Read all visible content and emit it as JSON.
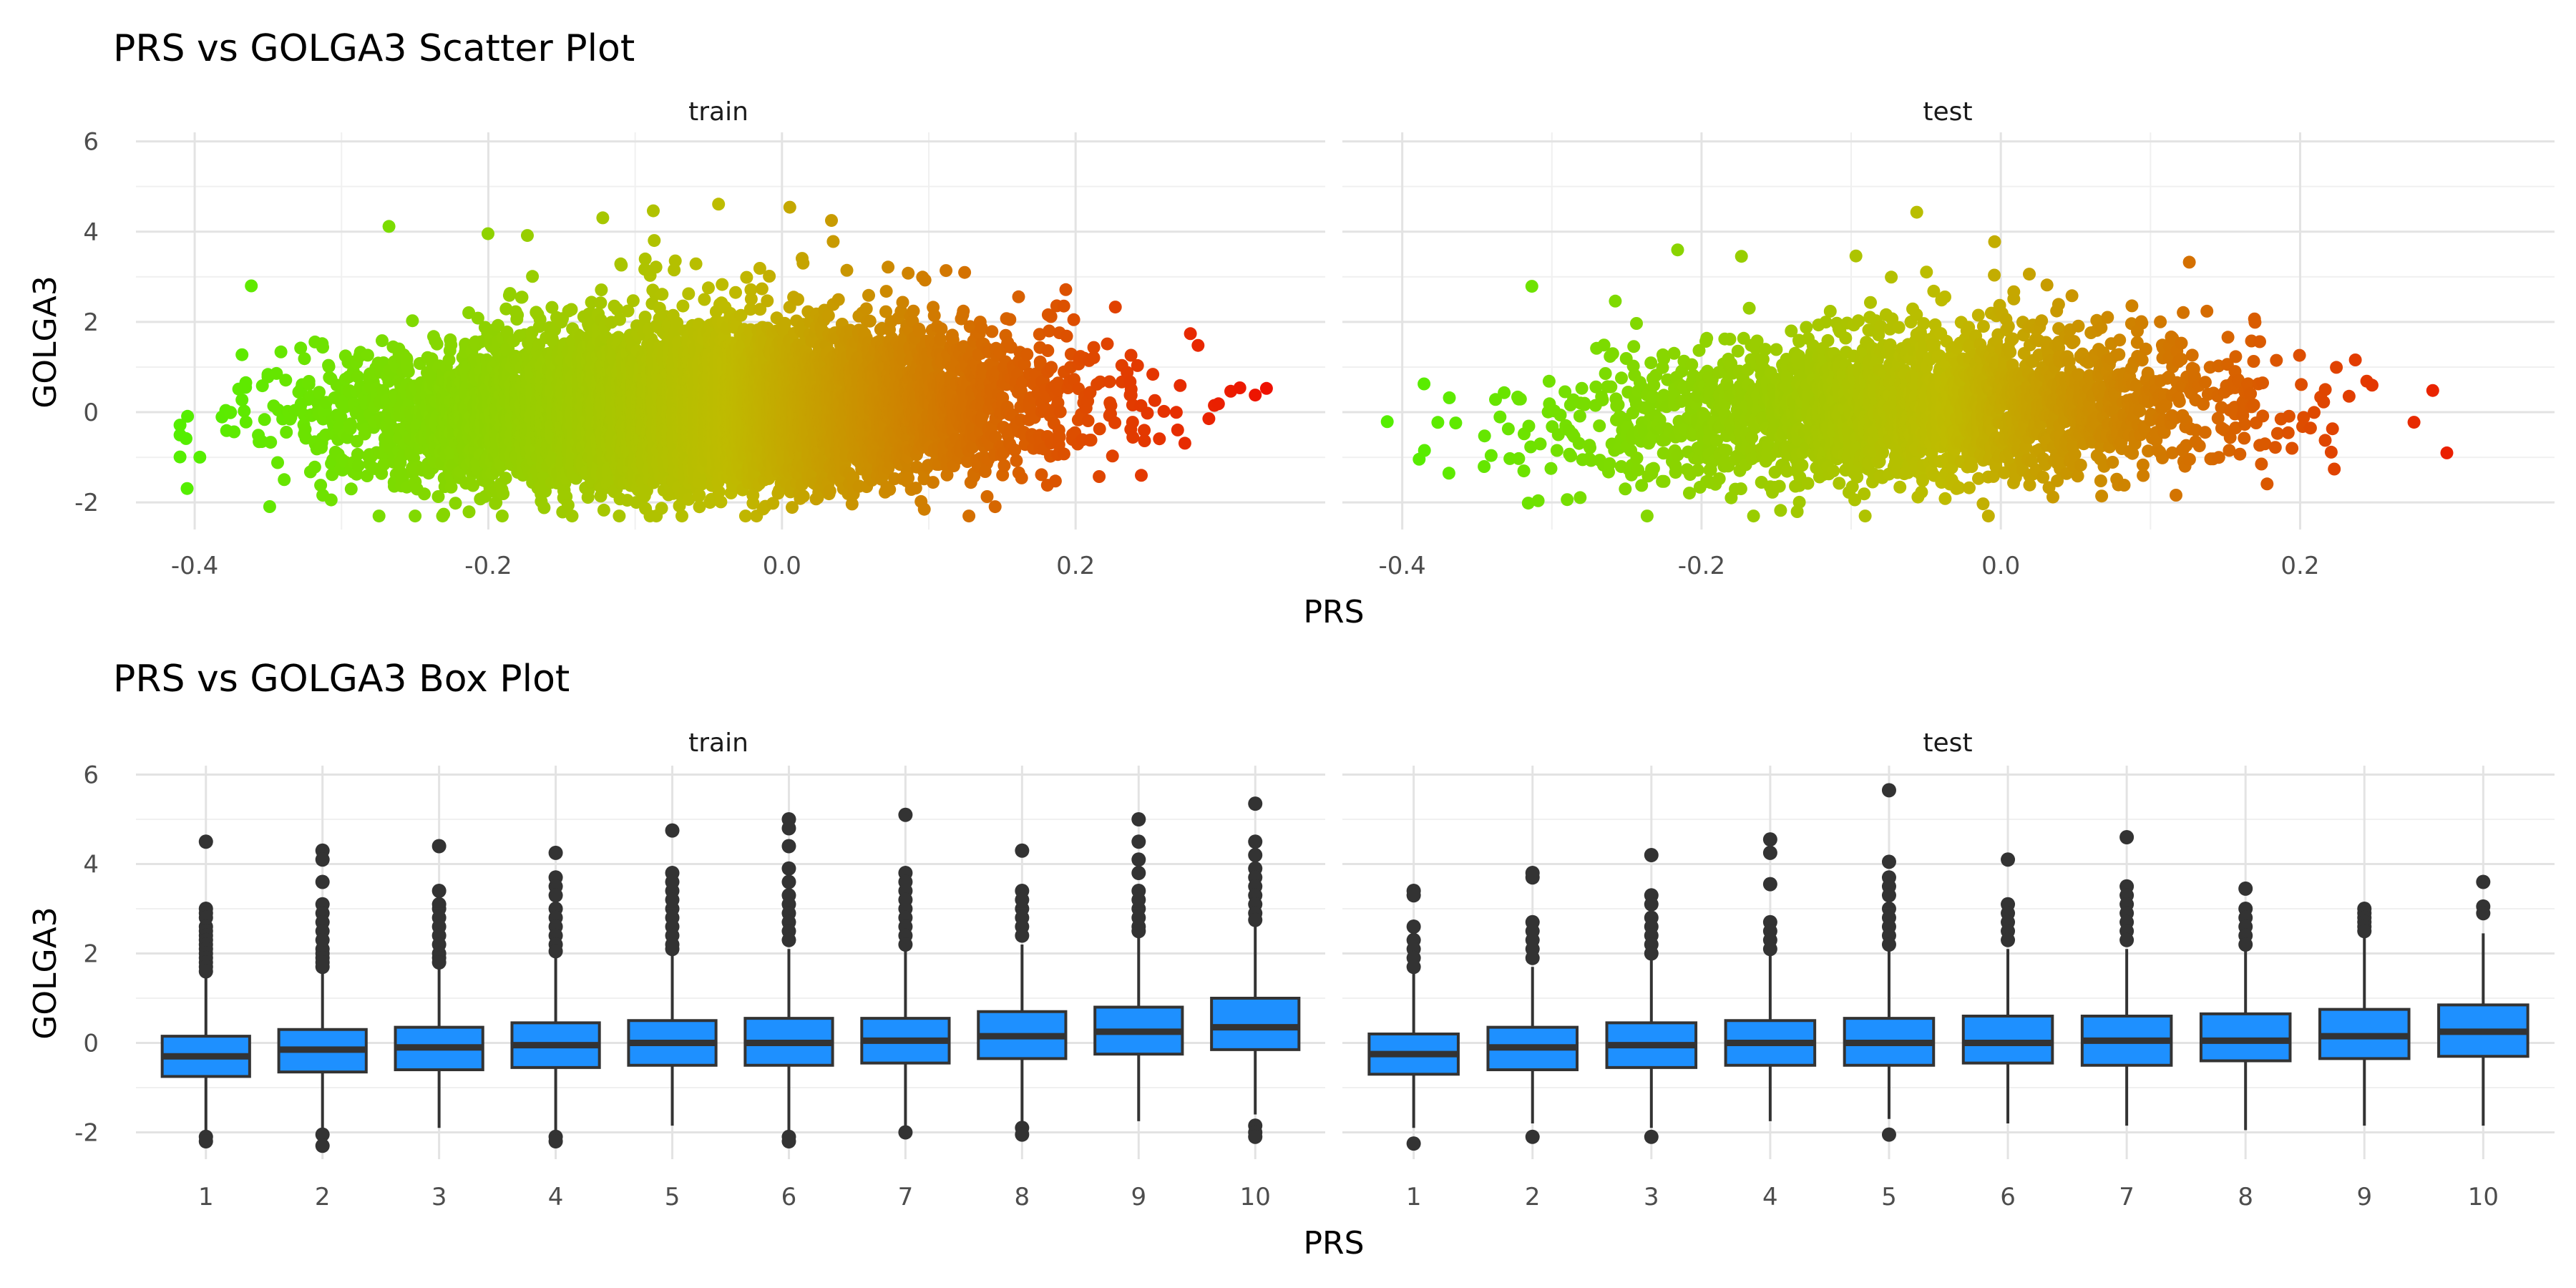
{
  "chart_data": [
    {
      "type": "scatter",
      "title": "PRS vs GOLGA3 Scatter Plot",
      "xlabel": "PRS",
      "ylabel": "GOLGA3",
      "facets": [
        {
          "label": "train",
          "n_points": 9000,
          "x_center": -0.06,
          "x_sd": 0.105,
          "y_mean": 0.05,
          "y_sd": 0.78,
          "slope": 2.3,
          "xlim": [
            -0.44,
            0.37
          ]
        },
        {
          "label": "test",
          "n_points": 2600,
          "x_center": -0.06,
          "x_sd": 0.105,
          "y_mean": 0.05,
          "y_sd": 0.78,
          "slope": 2.3,
          "xlim": [
            -0.44,
            0.37
          ]
        }
      ],
      "x_ticks": [
        -0.4,
        -0.2,
        0.0,
        0.2
      ],
      "x_tick_labels": [
        "-0.4",
        "-0.2",
        "0.0",
        "0.2"
      ],
      "y_ticks": [
        -2,
        0,
        2,
        4,
        6
      ],
      "y_tick_labels": [
        "-2",
        "0",
        "2",
        "4",
        "6"
      ],
      "ylim": [
        -2.6,
        6.2
      ],
      "color_scale": {
        "low": "#55ee00",
        "mid": "#bfbb00",
        "high": "#ee1100",
        "domain": [
          -0.4,
          0.33
        ]
      },
      "grid": true
    },
    {
      "type": "box",
      "title": "PRS vs GOLGA3 Box Plot",
      "xlabel": "PRS",
      "ylabel": "GOLGA3",
      "categories": [
        "1",
        "2",
        "3",
        "4",
        "5",
        "6",
        "7",
        "8",
        "9",
        "10"
      ],
      "y_ticks": [
        -2,
        0,
        2,
        4,
        6
      ],
      "y_tick_labels": [
        "-2",
        "0",
        "2",
        "4",
        "6"
      ],
      "ylim": [
        -2.6,
        6.2
      ],
      "box_color": "#1e90ff",
      "facets": [
        {
          "label": "train",
          "boxes": [
            {
              "q1": -0.75,
              "median": -0.3,
              "q3": 0.15,
              "lower": -2.0,
              "upper": 1.45,
              "outliers": [
                4.5,
                3.0,
                2.9,
                2.8,
                2.6,
                2.5,
                2.4,
                2.3,
                2.2,
                2.1,
                2.0,
                1.9,
                1.8,
                1.7,
                1.6,
                -2.1,
                -2.2
              ]
            },
            {
              "q1": -0.65,
              "median": -0.15,
              "q3": 0.3,
              "lower": -1.9,
              "upper": 1.6,
              "outliers": [
                4.3,
                4.1,
                3.6,
                3.1,
                2.9,
                2.7,
                2.5,
                2.3,
                2.1,
                2.0,
                1.9,
                1.8,
                1.7,
                -2.05,
                -2.3
              ]
            },
            {
              "q1": -0.6,
              "median": -0.1,
              "q3": 0.35,
              "lower": -1.9,
              "upper": 1.75,
              "outliers": [
                4.4,
                3.4,
                3.1,
                3.0,
                2.8,
                2.6,
                2.4,
                2.2,
                2.0,
                1.9,
                1.8
              ]
            },
            {
              "q1": -0.55,
              "median": -0.05,
              "q3": 0.45,
              "lower": -2.0,
              "upper": 1.95,
              "outliers": [
                4.25,
                3.7,
                3.5,
                3.3,
                3.0,
                2.8,
                2.6,
                2.4,
                2.2,
                2.05,
                -2.1,
                -2.2
              ]
            },
            {
              "q1": -0.5,
              "median": 0.0,
              "q3": 0.5,
              "lower": -1.85,
              "upper": 2.0,
              "outliers": [
                4.75,
                3.8,
                3.6,
                3.4,
                3.2,
                3.0,
                2.8,
                2.6,
                2.4,
                2.2,
                2.1
              ]
            },
            {
              "q1": -0.5,
              "median": 0.0,
              "q3": 0.55,
              "lower": -2.0,
              "upper": 2.1,
              "outliers": [
                5.0,
                4.8,
                4.4,
                3.9,
                3.6,
                3.3,
                3.1,
                2.9,
                2.7,
                2.5,
                2.3,
                -2.1,
                -2.2
              ]
            },
            {
              "q1": -0.45,
              "median": 0.05,
              "q3": 0.55,
              "lower": -1.95,
              "upper": 2.05,
              "outliers": [
                5.1,
                3.8,
                3.6,
                3.4,
                3.2,
                3.0,
                2.8,
                2.6,
                2.4,
                2.2,
                -2.0
              ]
            },
            {
              "q1": -0.35,
              "median": 0.15,
              "q3": 0.7,
              "lower": -1.85,
              "upper": 2.2,
              "outliers": [
                4.3,
                3.4,
                3.2,
                3.0,
                2.8,
                2.6,
                2.4,
                -1.9,
                -2.05
              ]
            },
            {
              "q1": -0.25,
              "median": 0.25,
              "q3": 0.8,
              "lower": -1.75,
              "upper": 2.4,
              "outliers": [
                5.0,
                4.5,
                4.1,
                3.8,
                3.4,
                3.2,
                3.0,
                2.8,
                2.6,
                2.5
              ]
            },
            {
              "q1": -0.15,
              "median": 0.35,
              "q3": 1.0,
              "lower": -1.6,
              "upper": 2.6,
              "outliers": [
                5.35,
                4.5,
                4.2,
                3.9,
                3.7,
                3.5,
                3.3,
                3.1,
                2.9,
                2.75,
                -1.85,
                -2.0,
                -2.1
              ]
            }
          ]
        },
        {
          "label": "test",
          "boxes": [
            {
              "q1": -0.7,
              "median": -0.25,
              "q3": 0.2,
              "lower": -1.9,
              "upper": 1.55,
              "outliers": [
                3.4,
                3.3,
                2.6,
                2.3,
                2.1,
                1.9,
                1.7,
                -2.25
              ]
            },
            {
              "q1": -0.6,
              "median": -0.1,
              "q3": 0.35,
              "lower": -1.8,
              "upper": 1.7,
              "outliers": [
                3.8,
                3.7,
                2.7,
                2.5,
                2.3,
                2.1,
                1.9,
                -2.1
              ]
            },
            {
              "q1": -0.55,
              "median": -0.05,
              "q3": 0.45,
              "lower": -1.9,
              "upper": 1.85,
              "outliers": [
                4.2,
                3.3,
                3.1,
                2.8,
                2.6,
                2.4,
                2.2,
                2.0,
                -2.1
              ]
            },
            {
              "q1": -0.5,
              "median": 0.0,
              "q3": 0.5,
              "lower": -1.75,
              "upper": 2.0,
              "outliers": [
                4.55,
                4.25,
                3.55,
                2.7,
                2.5,
                2.3,
                2.1
              ]
            },
            {
              "q1": -0.5,
              "median": 0.0,
              "q3": 0.55,
              "lower": -1.7,
              "upper": 2.1,
              "outliers": [
                5.65,
                4.05,
                3.7,
                3.5,
                3.3,
                3.0,
                2.8,
                2.6,
                2.4,
                2.2,
                -2.05
              ]
            },
            {
              "q1": -0.45,
              "median": 0.0,
              "q3": 0.6,
              "lower": -1.8,
              "upper": 2.1,
              "outliers": [
                4.1,
                3.1,
                2.9,
                2.7,
                2.5,
                2.3
              ]
            },
            {
              "q1": -0.5,
              "median": 0.05,
              "q3": 0.6,
              "lower": -1.85,
              "upper": 2.1,
              "outliers": [
                4.6,
                3.5,
                3.3,
                3.1,
                2.9,
                2.7,
                2.5,
                2.3
              ]
            },
            {
              "q1": -0.4,
              "median": 0.05,
              "q3": 0.65,
              "lower": -1.95,
              "upper": 2.1,
              "outliers": [
                3.45,
                3.0,
                2.8,
                2.6,
                2.4,
                2.2
              ]
            },
            {
              "q1": -0.35,
              "median": 0.15,
              "q3": 0.75,
              "lower": -1.85,
              "upper": 2.4,
              "outliers": [
                3.0,
                2.9,
                2.8,
                2.7,
                2.6,
                2.5
              ]
            },
            {
              "q1": -0.3,
              "median": 0.25,
              "q3": 0.85,
              "lower": -1.85,
              "upper": 2.45,
              "outliers": [
                3.6,
                3.05,
                2.9
              ]
            }
          ]
        }
      ],
      "grid": true
    }
  ]
}
